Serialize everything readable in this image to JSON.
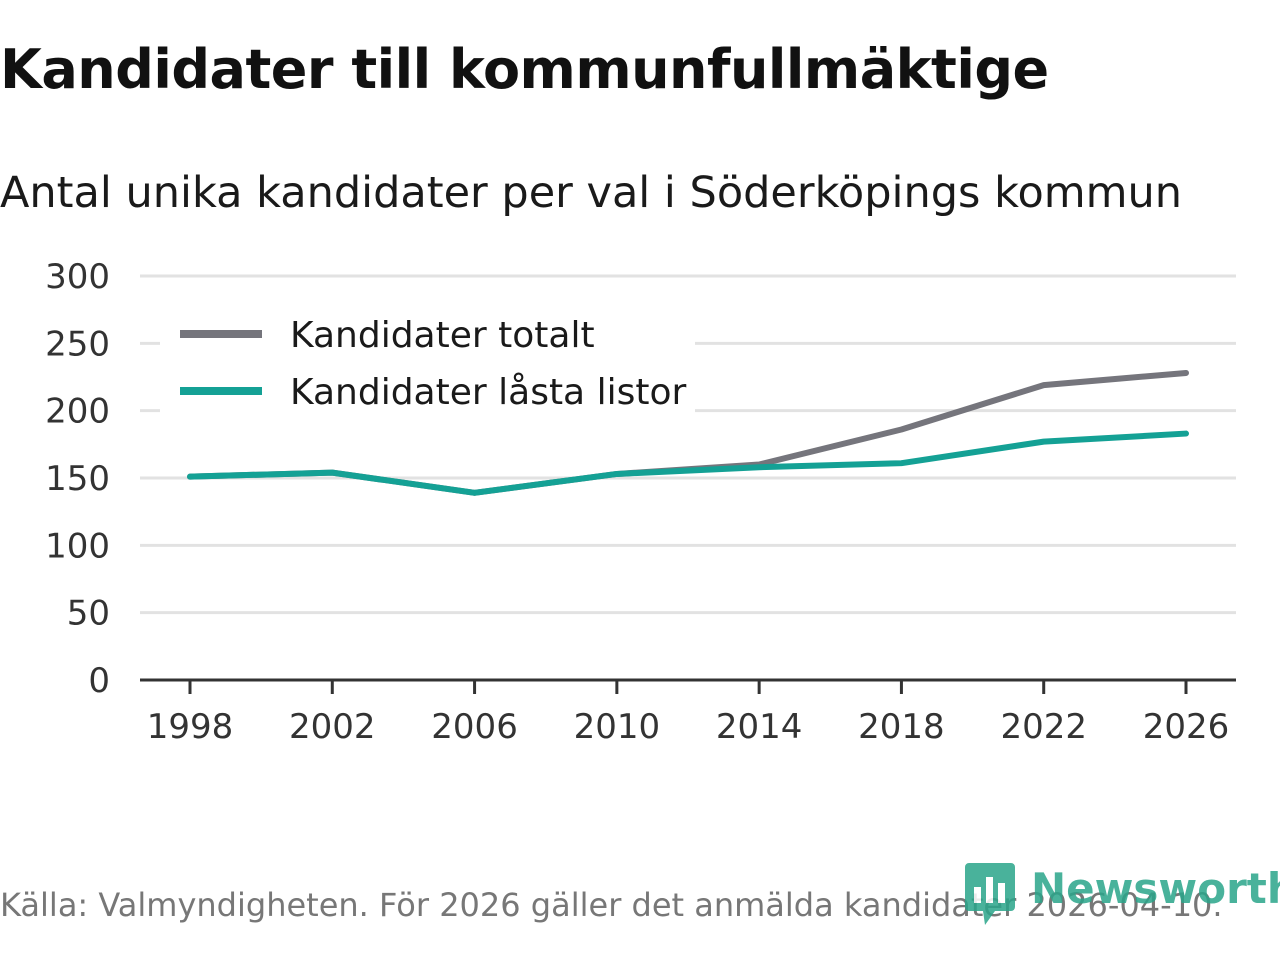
{
  "title": "Kandidater till kommunfullmäktige",
  "subtitle": "Antal unika kandidater per val i Söderköpings kommun",
  "source": "Källa: Valmyndigheten. För 2026 gäller det anmälda kandidater 2026-04-10.",
  "logo": {
    "text": "Newsworthy",
    "icon": "bar-chart-pin-icon"
  },
  "colors": {
    "total": "#75757c",
    "locked": "#14a195",
    "grid": "#e2e2e2",
    "axis": "#333333",
    "brand": "#2aa58a"
  },
  "chart_data": {
    "type": "line",
    "title": "Kandidater till kommunfullmäktige",
    "subtitle": "Antal unika kandidater per val i Söderköpings kommun",
    "x": [
      1998,
      2002,
      2006,
      2010,
      2014,
      2018,
      2022,
      2026
    ],
    "xlabel": "",
    "ylabel": "",
    "ylim": [
      0,
      300
    ],
    "yticks": [
      0,
      50,
      100,
      150,
      200,
      250,
      300
    ],
    "grid": true,
    "legend_position": "top-left",
    "series": [
      {
        "name": "Kandidater totalt",
        "color": "#75757c",
        "values": [
          151,
          154,
          139,
          153,
          160,
          186,
          219,
          228
        ]
      },
      {
        "name": "Kandidater låsta listor",
        "color": "#14a195",
        "values": [
          151,
          154,
          139,
          153,
          158,
          161,
          177,
          183
        ]
      }
    ]
  }
}
